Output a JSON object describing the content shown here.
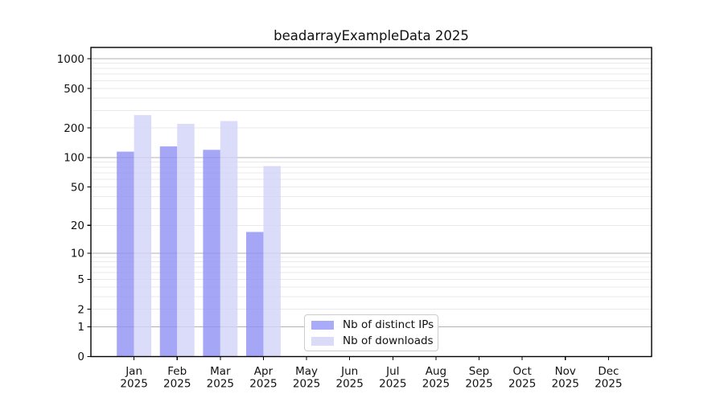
{
  "chart_data": {
    "type": "bar",
    "title": "beadarrayExampleData 2025",
    "categories": [
      "Jan 2025",
      "Feb 2025",
      "Mar 2025",
      "Apr 2025",
      "May 2025",
      "Jun 2025",
      "Jul 2025",
      "Aug 2025",
      "Sep 2025",
      "Oct 2025",
      "Nov 2025",
      "Dec 2025"
    ],
    "series": [
      {
        "name": "Nb of distinct IPs",
        "fill": "#8f90f3",
        "opacity": 0.8,
        "values": [
          115,
          130,
          120,
          17,
          0,
          0,
          0,
          0,
          0,
          0,
          0,
          0
        ]
      },
      {
        "name": "Nb of downloads",
        "fill": "#d2d3f8",
        "opacity": 0.8,
        "values": [
          270,
          220,
          235,
          82,
          0,
          0,
          0,
          0,
          0,
          0,
          0,
          0
        ]
      }
    ],
    "xlabel": "",
    "ylabel": "",
    "scale": "log1p",
    "ylim": [
      0,
      1300
    ],
    "y_ticks": [
      0,
      1,
      2,
      5,
      10,
      20,
      50,
      100,
      200,
      500,
      1000
    ],
    "grid": {
      "major": [
        1,
        10,
        100,
        1000
      ],
      "minor": [
        2,
        3,
        4,
        5,
        6,
        7,
        8,
        9,
        20,
        30,
        40,
        50,
        60,
        70,
        80,
        90,
        200,
        300,
        400,
        500,
        600,
        700,
        800,
        900
      ],
      "major_color": "#b2b2b2",
      "minor_color": "#e9e9e9"
    },
    "legend_position": "lower center inside plot"
  },
  "legend": {
    "items": [
      {
        "label": "Nb of distinct IPs",
        "color": "#a9aaf8"
      },
      {
        "label": "Nb of downloads",
        "color": "#dbdbf9"
      }
    ]
  },
  "colors": {
    "background": "#ffffff",
    "spine": "#000000",
    "text": "#111111",
    "bar_ips_on_white": "#a9aaf8",
    "bar_downloads_on_white": "#dbdbf9"
  }
}
